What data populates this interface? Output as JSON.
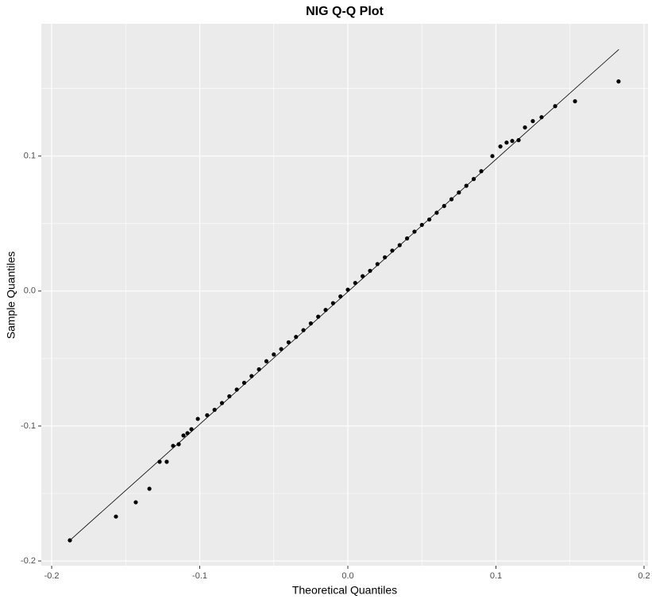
{
  "chart_data": {
    "type": "scatter",
    "title": "NIG Q-Q Plot",
    "x_label": "Theoretical Quantiles",
    "y_label": "Sample Quantiles",
    "xlim": [
      -0.207,
      0.2027
    ],
    "ylim": [
      -0.2035,
      0.198
    ],
    "xticks": [
      -0.2,
      -0.1,
      {
        "value": 0,
        "label": "0.0"
      },
      0.1,
      0.2
    ],
    "yticks": [
      -0.2,
      -0.1,
      {
        "value": 0,
        "label": "0.0"
      },
      0.1
    ],
    "minor_xticks": [
      -0.15,
      -0.05,
      0.05,
      0.15
    ],
    "minor_yticks": [
      -0.15,
      -0.05,
      0.05,
      0.15
    ],
    "grid": true,
    "reference_line": {
      "color": "#000000",
      "x": [
        -0.188,
        0.183
      ],
      "y": [
        -0.185,
        0.179
      ]
    },
    "series": [
      {
        "color": "#000000",
        "x": [
          -0.1877,
          -0.1566,
          -0.1432,
          -0.134,
          -0.1271,
          -0.1223,
          -0.118,
          -0.1142,
          -0.111,
          -0.1083,
          -0.1056,
          -0.1013,
          -0.095,
          -0.09,
          -0.085,
          -0.08,
          -0.075,
          -0.07,
          -0.065,
          -0.06,
          -0.055,
          -0.05,
          -0.045,
          -0.04,
          -0.035,
          -0.03,
          -0.025,
          -0.02,
          -0.015,
          -0.01,
          -0.005,
          0,
          0.005,
          0.01,
          0.015,
          0.02,
          0.025,
          0.03,
          0.035,
          0.04,
          0.045,
          0.05,
          0.055,
          0.06,
          0.065,
          0.07,
          0.075,
          0.08,
          0.085,
          0.0901,
          0.0976,
          0.103,
          0.1072,
          0.111,
          0.1153,
          0.1196,
          0.1249,
          0.1308,
          0.14,
          0.1534,
          0.1828
        ],
        "values": [
          -0.1847,
          -0.1671,
          -0.1565,
          -0.1465,
          -0.1265,
          -0.1265,
          -0.1147,
          -0.1135,
          -0.107,
          -0.1053,
          -0.1024,
          -0.0947,
          -0.092,
          -0.088,
          -0.083,
          -0.078,
          -0.073,
          -0.068,
          -0.063,
          -0.058,
          -0.052,
          -0.047,
          -0.043,
          -0.038,
          -0.034,
          -0.029,
          -0.024,
          -0.019,
          -0.014,
          -0.009,
          -0.004,
          0.001,
          0.006,
          0.011,
          0.015,
          0.02,
          0.025,
          0.03,
          0.034,
          0.039,
          0.044,
          0.049,
          0.053,
          0.058,
          0.063,
          0.068,
          0.073,
          0.078,
          0.083,
          0.0888,
          0.1,
          0.1071,
          0.11,
          0.1112,
          0.1118,
          0.1212,
          0.1259,
          0.1288,
          0.137,
          0.1406,
          0.1553
        ]
      }
    ]
  }
}
